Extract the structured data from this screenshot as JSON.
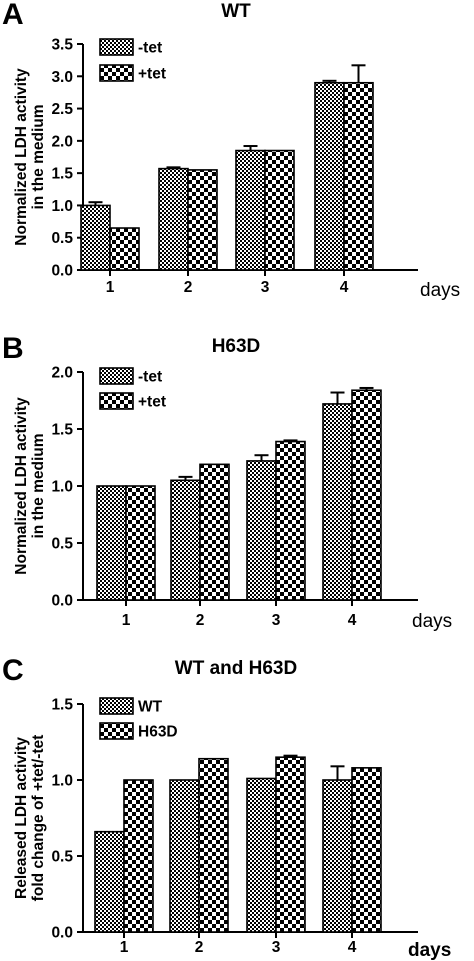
{
  "chart_data": [
    {
      "type": "bar",
      "panel": "A",
      "title": "WT",
      "ylabel_lines": [
        "Normalized LDH activity",
        "in the medium"
      ],
      "xlabel": "days",
      "categories": [
        "1",
        "2",
        "3",
        "4"
      ],
      "ylim": [
        0,
        3.5
      ],
      "yticks": [
        "0.0",
        "0.5",
        "1.0",
        "1.5",
        "2.0",
        "2.5",
        "3.0",
        "3.5"
      ],
      "series": [
        {
          "name": "-tet",
          "pattern": "fine",
          "values": [
            1.0,
            1.57,
            1.85,
            2.9
          ],
          "errors": [
            0.05,
            0.02,
            0.07,
            0.03
          ]
        },
        {
          "name": "+tet",
          "pattern": "coarse",
          "values": [
            0.65,
            1.55,
            1.85,
            2.9
          ],
          "errors": [
            0.0,
            0.0,
            0.0,
            0.27
          ]
        }
      ],
      "legend": "top-left"
    },
    {
      "type": "bar",
      "panel": "B",
      "title": "H63D",
      "ylabel_lines": [
        "Normalized LDH activity",
        "in the medium"
      ],
      "xlabel": "days",
      "categories": [
        "1",
        "2",
        "3",
        "4"
      ],
      "ylim": [
        0,
        2.0
      ],
      "yticks": [
        "0.0",
        "0.5",
        "1.0",
        "1.5",
        "2.0"
      ],
      "series": [
        {
          "name": "-tet",
          "pattern": "fine",
          "values": [
            1.0,
            1.05,
            1.22,
            1.72
          ],
          "errors": [
            0.0,
            0.03,
            0.05,
            0.1
          ]
        },
        {
          "name": "+tet",
          "pattern": "coarse",
          "values": [
            1.0,
            1.19,
            1.39,
            1.84
          ],
          "errors": [
            0.0,
            0.0,
            0.01,
            0.02
          ]
        }
      ],
      "legend": "top-left"
    },
    {
      "type": "bar",
      "panel": "C",
      "title": "WT and H63D",
      "ylabel_lines": [
        "Released LDH activity",
        "fold change of +tet/-tet"
      ],
      "xlabel": "days",
      "categories": [
        "1",
        "2",
        "3",
        "4"
      ],
      "ylim": [
        0,
        1.5
      ],
      "yticks": [
        "0.0",
        "0.5",
        "1.0",
        "1.5"
      ],
      "series": [
        {
          "name": "WT",
          "pattern": "fine",
          "values": [
            0.66,
            1.0,
            1.01,
            1.0
          ],
          "errors": [
            0.0,
            0.0,
            0.0,
            0.09
          ]
        },
        {
          "name": "H63D",
          "pattern": "coarse",
          "values": [
            1.0,
            1.14,
            1.15,
            1.08
          ],
          "errors": [
            0.0,
            0.0,
            0.01,
            0.0
          ]
        }
      ],
      "legend": "top-left"
    }
  ]
}
